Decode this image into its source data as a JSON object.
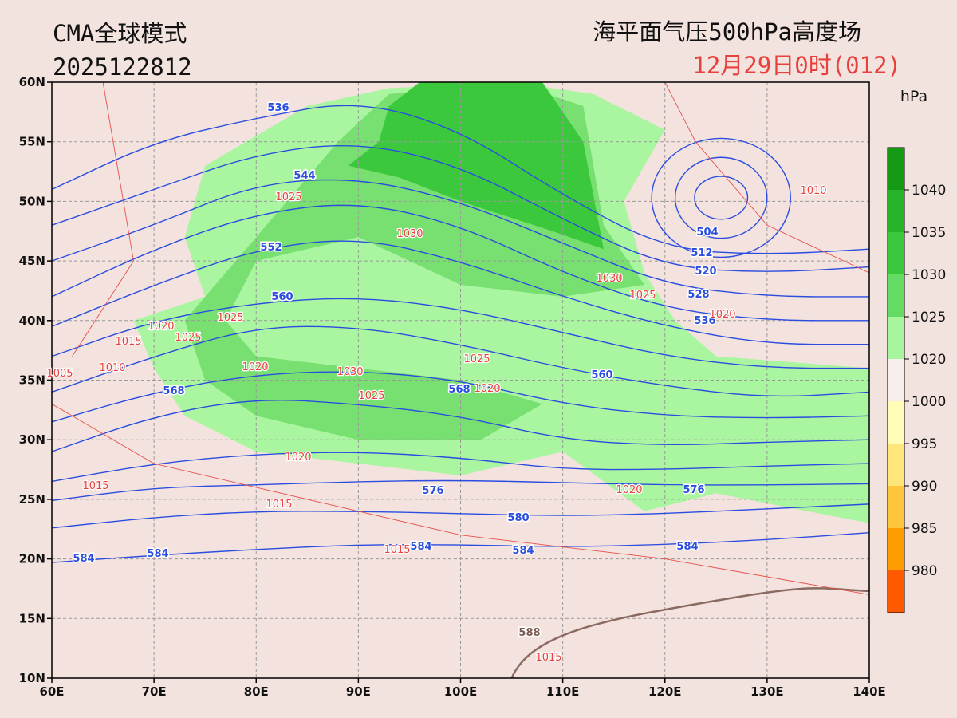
{
  "header": {
    "model": "CMA全球模式",
    "run": "2025122812",
    "product": "海平面气压500hPa高度场",
    "valid": "12月29日0时(012)"
  },
  "map": {
    "lonlim": [
      60,
      140
    ],
    "latlim": [
      10,
      60
    ],
    "lon_ticks": [
      {
        "value": 60,
        "label": "60E"
      },
      {
        "value": 70,
        "label": "70E"
      },
      {
        "value": 80,
        "label": "80E"
      },
      {
        "value": 90,
        "label": "90E"
      },
      {
        "value": 100,
        "label": "100E"
      },
      {
        "value": 110,
        "label": "110E"
      },
      {
        "value": 120,
        "label": "120E"
      },
      {
        "value": 130,
        "label": "130E"
      },
      {
        "value": 140,
        "label": "140E"
      }
    ],
    "lat_ticks": [
      {
        "value": 10,
        "label": "10N"
      },
      {
        "value": 15,
        "label": "15N"
      },
      {
        "value": 20,
        "label": "20N"
      },
      {
        "value": 25,
        "label": "25N"
      },
      {
        "value": 30,
        "label": "30N"
      },
      {
        "value": 35,
        "label": "35N"
      },
      {
        "value": 40,
        "label": "40N"
      },
      {
        "value": 45,
        "label": "45N"
      },
      {
        "value": 50,
        "label": "50N"
      },
      {
        "value": 55,
        "label": "55N"
      },
      {
        "value": 60,
        "label": "60N"
      }
    ],
    "height_labels": [
      536,
      544,
      552,
      560,
      568,
      576,
      580,
      584,
      584,
      584,
      584,
      584,
      576,
      560,
      568,
      504,
      512,
      520,
      528,
      536,
      588
    ],
    "pressure_labels": [
      1025,
      1030,
      1030,
      1025,
      1020,
      1010,
      1020,
      1025,
      1015,
      1025,
      1010,
      1005,
      1020,
      1030,
      1025,
      1025,
      1020,
      1020,
      1015,
      1015,
      1015,
      1020,
      1015
    ]
  },
  "colorbar": {
    "unit": "hPa",
    "labels": [
      1040,
      1035,
      1030,
      1025,
      1020,
      1000,
      995,
      990,
      985,
      980
    ],
    "colors": [
      "#149a14",
      "#28b428",
      "#3cc83c",
      "#64dc64",
      "#a8f5a0",
      "#f8eeec",
      "#fffcb8",
      "#ffe67a",
      "#ffc63c",
      "#ff9c00",
      "#ff5a00"
    ]
  }
}
